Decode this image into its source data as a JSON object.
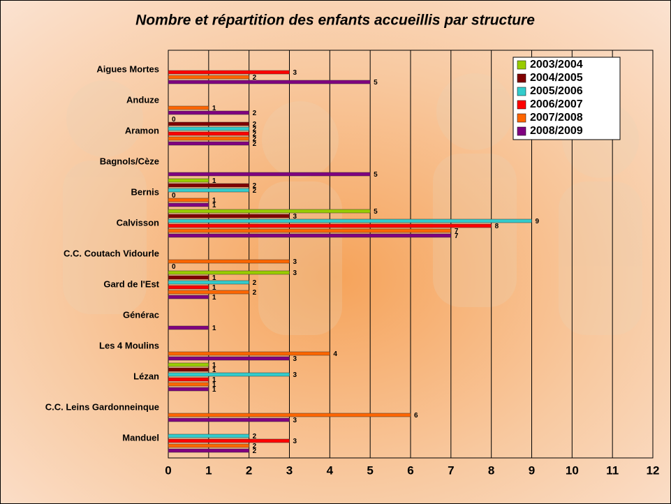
{
  "chart_data": {
    "type": "hbar",
    "title": "Nombre et répartition des enfants accueillis par structure",
    "categories": [
      "Aigues Mortes",
      "Anduze",
      "Aramon",
      "Bagnols/Cèze",
      "Bernis",
      "Calvisson",
      "C.C. Coutach Vidourle",
      "Gard de l'Est",
      "Générac",
      "Les 4 Moulins",
      "Lézan",
      "C.C. Leins Gardonneinque",
      "Manduel"
    ],
    "series": [
      {
        "name": "2003/2004",
        "color": "#99cc00",
        "values": [
          null,
          null,
          0,
          null,
          1,
          5,
          null,
          3,
          null,
          null,
          1,
          null,
          null
        ]
      },
      {
        "name": "2004/2005",
        "color": "#800000",
        "values": [
          null,
          null,
          2,
          null,
          2,
          3,
          null,
          1,
          null,
          null,
          1,
          null,
          null
        ]
      },
      {
        "name": "2005/2006",
        "color": "#33cccc",
        "values": [
          null,
          null,
          2,
          null,
          2,
          9,
          null,
          2,
          null,
          null,
          3,
          null,
          2
        ]
      },
      {
        "name": "2006/2007",
        "color": "#ff0000",
        "values": [
          3,
          null,
          2,
          null,
          0,
          8,
          null,
          1,
          null,
          null,
          1,
          null,
          3
        ]
      },
      {
        "name": "2007/2008",
        "color": "#ff6600",
        "values": [
          2,
          1,
          2,
          null,
          1,
          7,
          3,
          2,
          null,
          4,
          1,
          6,
          2
        ]
      },
      {
        "name": "2008/2009",
        "color": "#800080",
        "values": [
          5,
          2,
          2,
          5,
          1,
          7,
          0,
          1,
          1,
          3,
          1,
          3,
          2
        ]
      }
    ],
    "xlim": [
      0,
      12
    ],
    "xticks": [
      0,
      1,
      2,
      3,
      4,
      5,
      6,
      7,
      8,
      9,
      10,
      11,
      12
    ],
    "grid": true,
    "legend": "top-right"
  }
}
